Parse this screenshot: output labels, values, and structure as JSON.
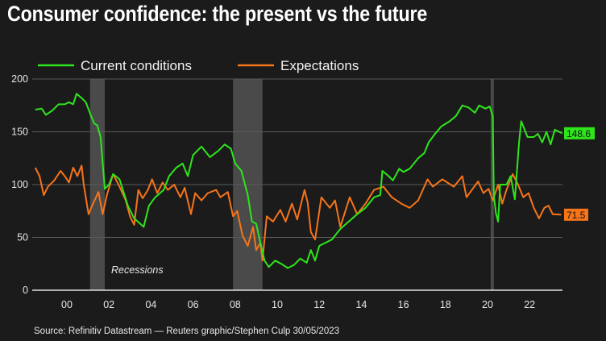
{
  "title": "Consumer confidence: the present vs the future",
  "source": "Source: Refinitiv Datastream — Reuters graphic/Stephen Culp 30/05/2023",
  "chart_data": {
    "type": "line",
    "title": "Consumer confidence: the present vs the future",
    "xlabel": "",
    "ylabel": "",
    "xlim": [
      1998.4,
      2023.6
    ],
    "ylim": [
      0,
      200
    ],
    "yticks": [
      0,
      50,
      100,
      150,
      200
    ],
    "xticks": [
      2000,
      2002,
      2004,
      2006,
      2008,
      2010,
      2012,
      2014,
      2016,
      2018,
      2020,
      2022
    ],
    "xtick_labels": [
      "00",
      "02",
      "04",
      "06",
      "08",
      "10",
      "12",
      "14",
      "16",
      "18",
      "20",
      "22"
    ],
    "grid": "horizontal",
    "legend": "top-left",
    "background": "#1b1b1b",
    "recessions_label": "Recessions",
    "recessions": [
      [
        2001.1,
        2001.8
      ],
      [
        2007.9,
        2009.3
      ],
      [
        2020.15,
        2020.3
      ]
    ],
    "series": [
      {
        "name": "Current conditions",
        "color": "#2ee51c",
        "last_value_label": "148.6",
        "points": [
          [
            1998.5,
            171
          ],
          [
            1998.8,
            172
          ],
          [
            1999.0,
            166
          ],
          [
            1999.3,
            170
          ],
          [
            1999.6,
            176
          ],
          [
            1999.9,
            176
          ],
          [
            2000.1,
            178
          ],
          [
            2000.3,
            176
          ],
          [
            2000.46,
            186
          ],
          [
            2000.7,
            182
          ],
          [
            2000.9,
            178
          ],
          [
            2001.15,
            165
          ],
          [
            2001.3,
            158
          ],
          [
            2001.45,
            156
          ],
          [
            2001.6,
            145
          ],
          [
            2001.8,
            96
          ],
          [
            2002.0,
            100
          ],
          [
            2002.2,
            110
          ],
          [
            2002.5,
            105
          ],
          [
            2002.9,
            80
          ],
          [
            2003.2,
            68
          ],
          [
            2003.65,
            60
          ],
          [
            2003.9,
            80
          ],
          [
            2004.2,
            88
          ],
          [
            2004.6,
            95
          ],
          [
            2004.86,
            108
          ],
          [
            2005.2,
            116
          ],
          [
            2005.5,
            120
          ],
          [
            2005.75,
            108
          ],
          [
            2006.0,
            128
          ],
          [
            2006.4,
            136
          ],
          [
            2006.8,
            126
          ],
          [
            2007.2,
            132
          ],
          [
            2007.5,
            138
          ],
          [
            2007.8,
            134
          ],
          [
            2008.0,
            120
          ],
          [
            2008.3,
            113
          ],
          [
            2008.6,
            90
          ],
          [
            2008.8,
            65
          ],
          [
            2009.0,
            63
          ],
          [
            2009.2,
            45
          ],
          [
            2009.4,
            28
          ],
          [
            2009.6,
            22
          ],
          [
            2009.9,
            28
          ],
          [
            2010.2,
            25
          ],
          [
            2010.5,
            21
          ],
          [
            2010.8,
            24
          ],
          [
            2011.1,
            30
          ],
          [
            2011.4,
            26
          ],
          [
            2011.6,
            38
          ],
          [
            2011.8,
            28
          ],
          [
            2012.0,
            42
          ],
          [
            2012.3,
            45
          ],
          [
            2012.6,
            48
          ],
          [
            2013.0,
            58
          ],
          [
            2013.4,
            65
          ],
          [
            2013.8,
            72
          ],
          [
            2014.2,
            78
          ],
          [
            2014.6,
            88
          ],
          [
            2014.9,
            90
          ],
          [
            2015.0,
            113
          ],
          [
            2015.3,
            108
          ],
          [
            2015.5,
            104
          ],
          [
            2015.8,
            115
          ],
          [
            2016.0,
            112
          ],
          [
            2016.3,
            115
          ],
          [
            2016.7,
            125
          ],
          [
            2017.0,
            130
          ],
          [
            2017.2,
            140
          ],
          [
            2017.5,
            148
          ],
          [
            2017.8,
            155
          ],
          [
            2018.2,
            160
          ],
          [
            2018.5,
            165
          ],
          [
            2018.8,
            175
          ],
          [
            2019.1,
            173
          ],
          [
            2019.4,
            168
          ],
          [
            2019.6,
            175
          ],
          [
            2019.9,
            172
          ],
          [
            2020.1,
            174
          ],
          [
            2020.25,
            165
          ],
          [
            2020.3,
            90
          ],
          [
            2020.4,
            73
          ],
          [
            2020.5,
            65
          ],
          [
            2020.6,
            100
          ],
          [
            2020.9,
            100
          ],
          [
            2021.1,
            108
          ],
          [
            2021.3,
            86
          ],
          [
            2021.5,
            140
          ],
          [
            2021.6,
            160
          ],
          [
            2021.9,
            145
          ],
          [
            2022.2,
            145
          ],
          [
            2022.4,
            148
          ],
          [
            2022.6,
            140
          ],
          [
            2022.8,
            150
          ],
          [
            2023.0,
            138
          ],
          [
            2023.2,
            152
          ],
          [
            2023.4,
            150
          ],
          [
            2023.55,
            148.6
          ]
        ]
      },
      {
        "name": "Expectations",
        "color": "#f77419",
        "last_value_label": "71.5",
        "points": [
          [
            1998.5,
            116
          ],
          [
            1998.7,
            108
          ],
          [
            1998.9,
            90
          ],
          [
            1999.1,
            98
          ],
          [
            1999.4,
            104
          ],
          [
            1999.7,
            113
          ],
          [
            1999.9,
            108
          ],
          [
            2000.1,
            102
          ],
          [
            2000.3,
            116
          ],
          [
            2000.5,
            108
          ],
          [
            2000.7,
            118
          ],
          [
            2000.8,
            100
          ],
          [
            2001.03,
            72
          ],
          [
            2001.2,
            80
          ],
          [
            2001.5,
            93
          ],
          [
            2001.7,
            72
          ],
          [
            2001.9,
            90
          ],
          [
            2002.2,
            110
          ],
          [
            2002.5,
            98
          ],
          [
            2002.8,
            85
          ],
          [
            2003.0,
            70
          ],
          [
            2003.2,
            62
          ],
          [
            2003.4,
            95
          ],
          [
            2003.6,
            87
          ],
          [
            2003.85,
            95
          ],
          [
            2004.05,
            105
          ],
          [
            2004.3,
            92
          ],
          [
            2004.55,
            102
          ],
          [
            2004.8,
            95
          ],
          [
            2005.1,
            100
          ],
          [
            2005.4,
            88
          ],
          [
            2005.6,
            97
          ],
          [
            2005.9,
            72
          ],
          [
            2006.1,
            92
          ],
          [
            2006.4,
            85
          ],
          [
            2006.7,
            92
          ],
          [
            2007.1,
            95
          ],
          [
            2007.3,
            88
          ],
          [
            2007.65,
            93
          ],
          [
            2007.9,
            70
          ],
          [
            2008.1,
            75
          ],
          [
            2008.35,
            52
          ],
          [
            2008.6,
            42
          ],
          [
            2008.85,
            60
          ],
          [
            2009.0,
            38
          ],
          [
            2009.2,
            45
          ],
          [
            2009.3,
            28
          ],
          [
            2009.5,
            70
          ],
          [
            2009.8,
            65
          ],
          [
            2010.15,
            76
          ],
          [
            2010.4,
            65
          ],
          [
            2010.7,
            82
          ],
          [
            2010.95,
            67
          ],
          [
            2011.3,
            95
          ],
          [
            2011.45,
            83
          ],
          [
            2011.6,
            55
          ],
          [
            2011.8,
            48
          ],
          [
            2012.1,
            88
          ],
          [
            2012.5,
            78
          ],
          [
            2012.75,
            85
          ],
          [
            2013.0,
            60
          ],
          [
            2013.45,
            88
          ],
          [
            2013.8,
            72
          ],
          [
            2014.2,
            82
          ],
          [
            2014.6,
            95
          ],
          [
            2015.05,
            98
          ],
          [
            2015.45,
            88
          ],
          [
            2015.9,
            82
          ],
          [
            2016.3,
            78
          ],
          [
            2016.7,
            85
          ],
          [
            2017.15,
            105
          ],
          [
            2017.4,
            98
          ],
          [
            2017.85,
            105
          ],
          [
            2018.4,
            98
          ],
          [
            2018.8,
            108
          ],
          [
            2019.0,
            88
          ],
          [
            2019.55,
            103
          ],
          [
            2019.8,
            92
          ],
          [
            2020.05,
            96
          ],
          [
            2020.25,
            85
          ],
          [
            2020.5,
            100
          ],
          [
            2020.7,
            82
          ],
          [
            2020.9,
            95
          ],
          [
            2021.2,
            110
          ],
          [
            2021.45,
            100
          ],
          [
            2021.7,
            88
          ],
          [
            2021.95,
            92
          ],
          [
            2022.2,
            78
          ],
          [
            2022.45,
            68
          ],
          [
            2022.7,
            78
          ],
          [
            2022.9,
            80
          ],
          [
            2023.1,
            72
          ],
          [
            2023.5,
            71.5
          ]
        ]
      }
    ]
  }
}
